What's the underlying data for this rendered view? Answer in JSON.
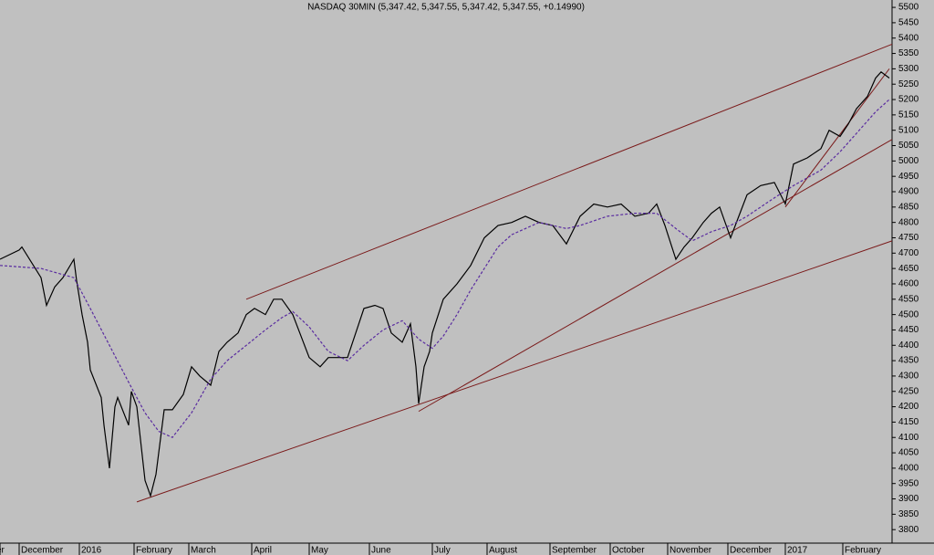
{
  "chart_data": {
    "type": "line",
    "title": "NASDAQ 30MIN (5,347.42, 5,347.55, 5,347.42, 5,347.55, +0.14990)",
    "xlim": [
      0,
      326
    ],
    "xticks": [
      {
        "value": 0,
        "label": "er"
      },
      {
        "value": 7,
        "label": "December"
      },
      {
        "value": 29,
        "label": "2016"
      },
      {
        "value": 49,
        "label": "February"
      },
      {
        "value": 69,
        "label": "March"
      },
      {
        "value": 92,
        "label": "April"
      },
      {
        "value": 113,
        "label": "May"
      },
      {
        "value": 135,
        "label": "June"
      },
      {
        "value": 158,
        "label": "July"
      },
      {
        "value": 178,
        "label": "August"
      },
      {
        "value": 201,
        "label": "September"
      },
      {
        "value": 223,
        "label": "October"
      },
      {
        "value": 244,
        "label": "November"
      },
      {
        "value": 266,
        "label": "December"
      },
      {
        "value": 287,
        "label": "2017"
      },
      {
        "value": 308,
        "label": "February"
      }
    ],
    "ylim": [
      3756,
      5524
    ],
    "yticks": [
      3800,
      3850,
      3900,
      3950,
      4000,
      4050,
      4100,
      4150,
      4200,
      4250,
      4300,
      4350,
      4400,
      4450,
      4500,
      4550,
      4600,
      4650,
      4700,
      4750,
      4800,
      4850,
      4900,
      4950,
      5000,
      5050,
      5100,
      5150,
      5200,
      5250,
      5300,
      5350,
      5400,
      5450,
      5500
    ],
    "series": [
      {
        "color": "#000000",
        "dash": false,
        "x": [
          0,
          7,
          8,
          15,
          17,
          20,
          23,
          27,
          28,
          30,
          32,
          33,
          37,
          38,
          40,
          42,
          43,
          47,
          48,
          50,
          53,
          55,
          57,
          58,
          60,
          63,
          67,
          70,
          73,
          77,
          80,
          83,
          87,
          90,
          93,
          97,
          100,
          103,
          107,
          110,
          113,
          117,
          120,
          123,
          127,
          130,
          133,
          137,
          140,
          143,
          147,
          150,
          152,
          153,
          155,
          157,
          158,
          162,
          167,
          172,
          177,
          182,
          187,
          192,
          197,
          202,
          207,
          212,
          217,
          222,
          227,
          232,
          237,
          240,
          243,
          247,
          250,
          253,
          257,
          260,
          263,
          267,
          270,
          273,
          278,
          283,
          287,
          290,
          295,
          300,
          303,
          307,
          310,
          313,
          317,
          320,
          322,
          325
        ],
        "values": [
          4680,
          4710,
          4720,
          4620,
          4530,
          4590,
          4620,
          4680,
          4610,
          4500,
          4410,
          4320,
          4230,
          4140,
          4000,
          4200,
          4230,
          4140,
          4250,
          4200,
          3960,
          3910,
          3980,
          4050,
          4190,
          4190,
          4240,
          4330,
          4300,
          4270,
          4380,
          4410,
          4440,
          4500,
          4520,
          4500,
          4550,
          4550,
          4500,
          4430,
          4360,
          4330,
          4360,
          4360,
          4360,
          4440,
          4520,
          4530,
          4520,
          4440,
          4410,
          4470,
          4330,
          4210,
          4330,
          4380,
          4440,
          4550,
          4600,
          4660,
          4750,
          4790,
          4800,
          4820,
          4800,
          4790,
          4730,
          4820,
          4860,
          4850,
          4860,
          4820,
          4830,
          4860,
          4790,
          4680,
          4720,
          4750,
          4800,
          4830,
          4850,
          4750,
          4820,
          4890,
          4920,
          4930,
          4860,
          4990,
          5010,
          5040,
          5100,
          5080,
          5120,
          5170,
          5210,
          5270,
          5290,
          5270
        ]
      },
      {
        "color": "#5a2ca0",
        "dash": true,
        "x": [
          0,
          15,
          27,
          33,
          40,
          47,
          53,
          58,
          63,
          70,
          77,
          83,
          90,
          97,
          103,
          107,
          113,
          120,
          127,
          133,
          140,
          147,
          153,
          158,
          162,
          167,
          172,
          177,
          182,
          187,
          192,
          197,
          207,
          212,
          222,
          232,
          240,
          247,
          253,
          260,
          267,
          273,
          283,
          290,
          300,
          307,
          313,
          320,
          325
        ],
        "values": [
          4660,
          4650,
          4620,
          4520,
          4400,
          4280,
          4180,
          4120,
          4100,
          4180,
          4290,
          4350,
          4400,
          4450,
          4490,
          4510,
          4460,
          4380,
          4350,
          4400,
          4450,
          4480,
          4420,
          4390,
          4430,
          4500,
          4580,
          4650,
          4720,
          4760,
          4780,
          4800,
          4780,
          4790,
          4820,
          4830,
          4830,
          4780,
          4740,
          4770,
          4790,
          4820,
          4880,
          4920,
          4970,
          5030,
          5090,
          5160,
          5200
        ]
      }
    ],
    "trendline_color": "#7a1a1a",
    "trendlines": [
      {
        "x": [
          90,
          326
        ],
        "y": [
          4550,
          5380
        ]
      },
      {
        "x": [
          50,
          326
        ],
        "y": [
          3890,
          4740
        ]
      },
      {
        "x": [
          153,
          326
        ],
        "y": [
          4185,
          5070
        ]
      },
      {
        "x": [
          287,
          325
        ],
        "y": [
          4850,
          5300
        ]
      }
    ]
  }
}
